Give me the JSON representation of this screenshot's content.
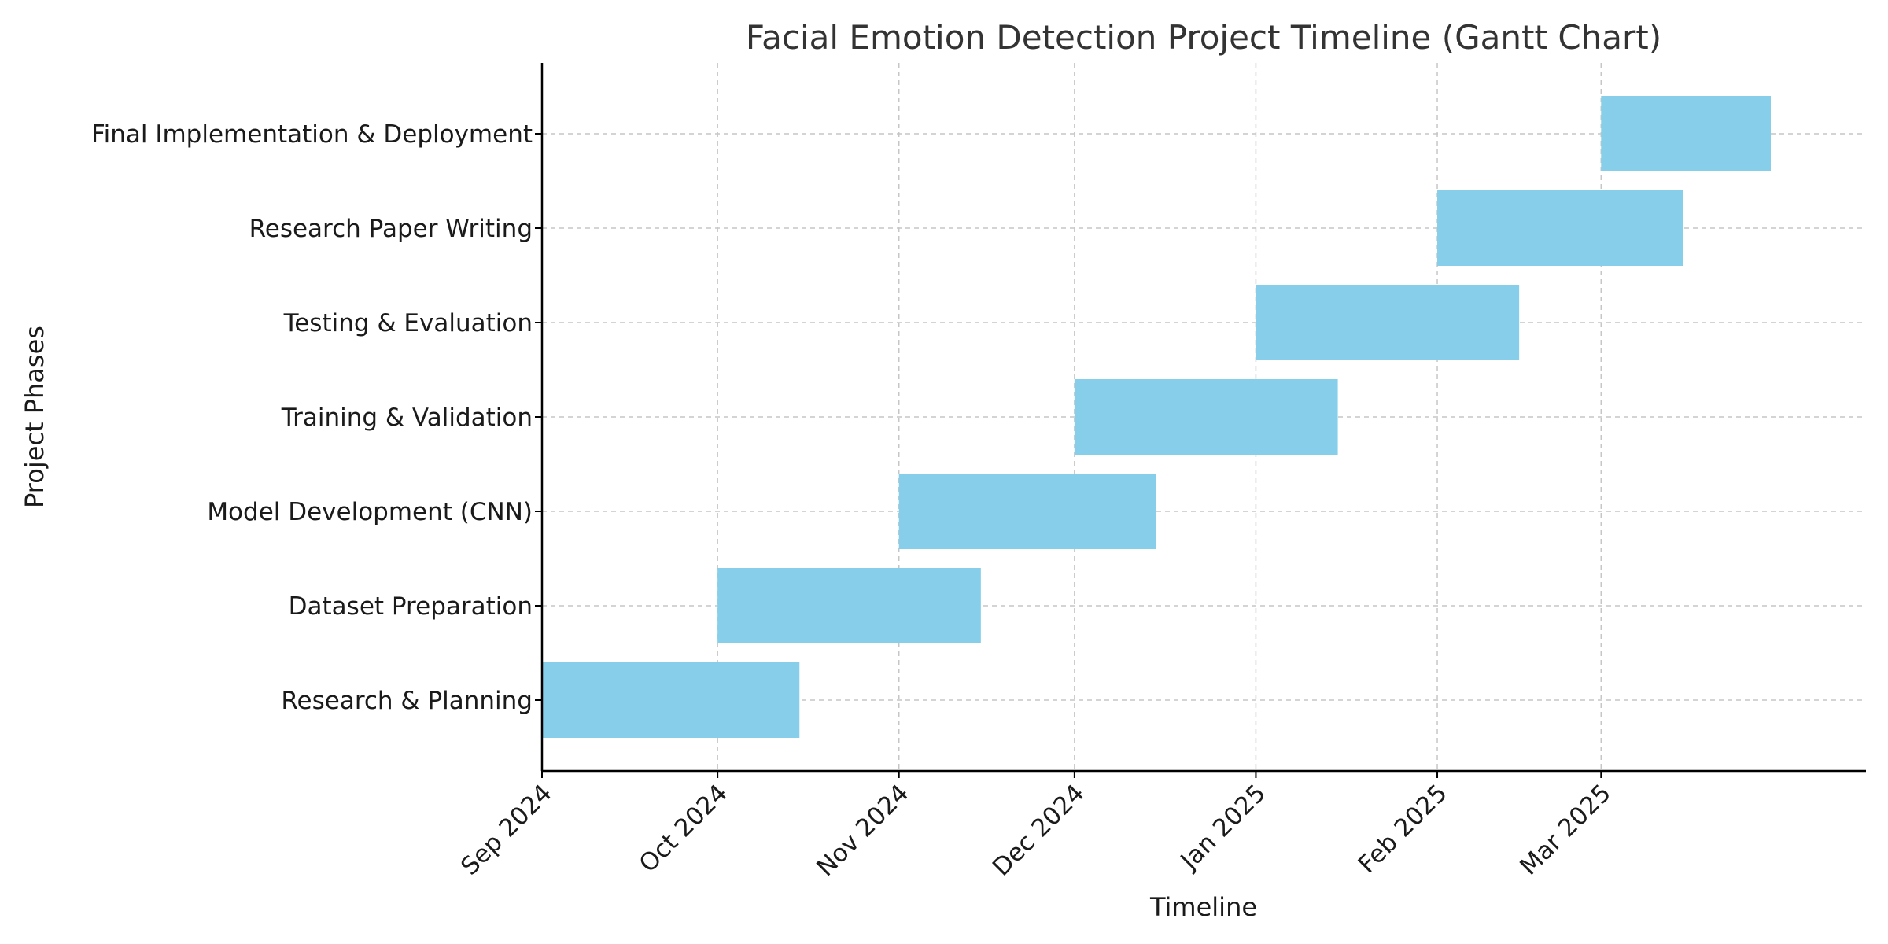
{
  "chart_data": {
    "type": "gantt",
    "title": "Facial Emotion Detection Project Timeline (Gantt Chart)",
    "xlabel": "Timeline",
    "ylabel": "Project Phases",
    "x_range": [
      "2024-09-01",
      "2025-04-15"
    ],
    "x_ticks": [
      {
        "date": "2024-09-01",
        "label": "Sep 2024"
      },
      {
        "date": "2024-10-01",
        "label": "Oct 2024"
      },
      {
        "date": "2024-11-01",
        "label": "Nov 2024"
      },
      {
        "date": "2024-12-01",
        "label": "Dec 2024"
      },
      {
        "date": "2025-01-01",
        "label": "Jan 2025"
      },
      {
        "date": "2025-02-01",
        "label": "Feb 2025"
      },
      {
        "date": "2025-03-01",
        "label": "Mar 2025"
      }
    ],
    "tasks": [
      {
        "name": "Research & Planning",
        "start": "2024-09-01",
        "end": "2024-10-15"
      },
      {
        "name": "Dataset Preparation",
        "start": "2024-10-01",
        "end": "2024-11-15"
      },
      {
        "name": "Model Development (CNN)",
        "start": "2024-11-01",
        "end": "2024-12-15"
      },
      {
        "name": "Training & Validation",
        "start": "2024-12-01",
        "end": "2025-01-15"
      },
      {
        "name": "Testing & Evaluation",
        "start": "2025-01-01",
        "end": "2025-02-15"
      },
      {
        "name": "Research Paper Writing",
        "start": "2025-02-01",
        "end": "2025-03-15"
      },
      {
        "name": "Final Implementation & Deployment",
        "start": "2025-03-01",
        "end": "2025-03-30"
      }
    ],
    "bar_color": "#87ceeb",
    "grid": true
  }
}
